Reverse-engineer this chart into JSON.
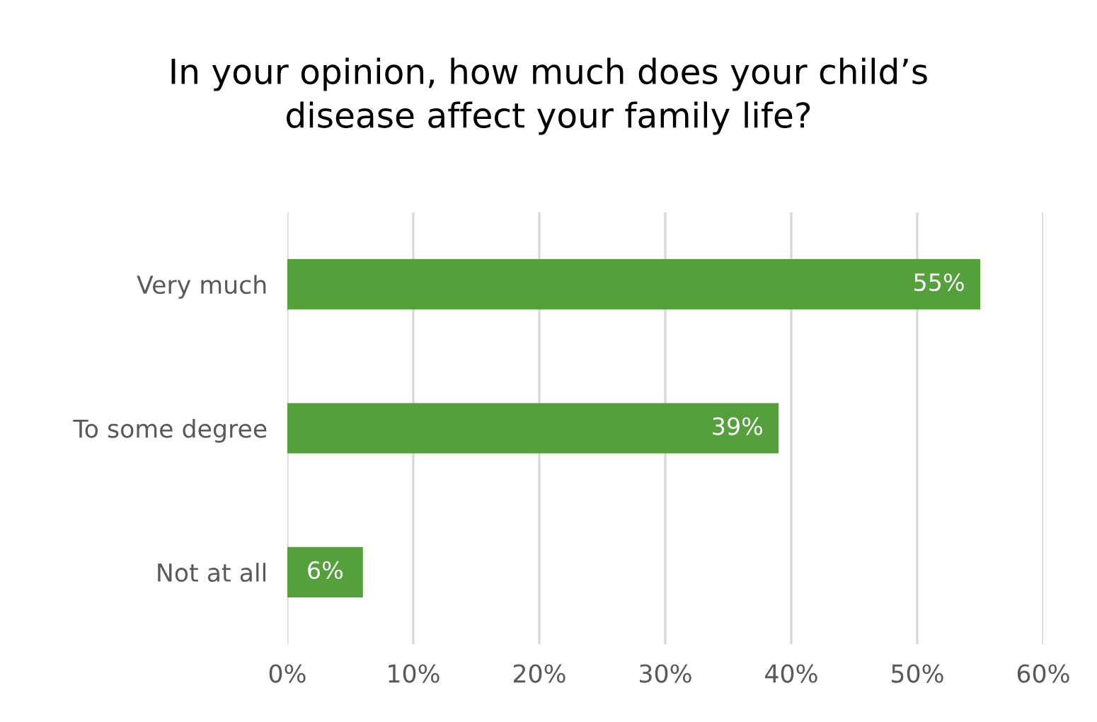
{
  "chart_data": {
    "type": "bar",
    "orientation": "horizontal",
    "title": "In your opinion, how much does your child’s\ndisease affect your family life?",
    "categories": [
      "Very much",
      "To some degree",
      "Not at all"
    ],
    "values": [
      55,
      39,
      6
    ],
    "color": "#55a03c",
    "value_labels": [
      "55%",
      "39%",
      "6%"
    ],
    "xlim": [
      0,
      60
    ],
    "xticks": [
      {
        "value": 0,
        "label": "0%"
      },
      {
        "value": 10,
        "label": "10%"
      },
      {
        "value": 20,
        "label": "20%"
      },
      {
        "value": 30,
        "label": "30%"
      },
      {
        "value": 40,
        "label": "40%"
      },
      {
        "value": 50,
        "label": "50%"
      },
      {
        "value": 60,
        "label": "60%"
      }
    ],
    "grid": "x",
    "legend": false
  }
}
